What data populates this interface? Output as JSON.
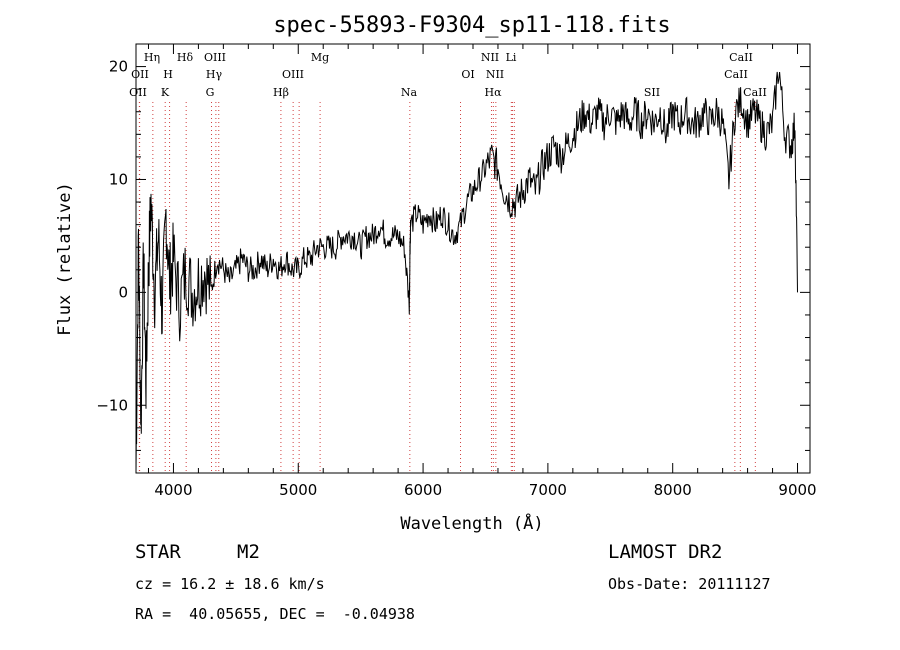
{
  "chart_data": {
    "type": "line",
    "title": "spec-55893-F9304_sp11-118.fits",
    "xlabel": "Wavelength (Å)",
    "ylabel": "Flux (relative)",
    "xlim": [
      3700,
      9100
    ],
    "ylim": [
      -16,
      22
    ],
    "xticks": [
      4000,
      5000,
      6000,
      7000,
      8000,
      9000
    ],
    "yticks": [
      -10,
      0,
      10,
      20
    ],
    "ytick_labels": [
      "−10",
      "0",
      "10",
      "20"
    ],
    "grid": false,
    "series": [
      {
        "x": [
          3700,
          3720,
          3740,
          3760,
          3780,
          3800,
          3820,
          3850,
          3880,
          3910,
          3940,
          3970,
          4000,
          4050,
          4100,
          4150,
          4200,
          4250,
          4300,
          4350,
          4400,
          4450,
          4500,
          4550,
          4600,
          4650,
          4700,
          4750,
          4800,
          4850,
          4900,
          4950,
          5000,
          5050,
          5100,
          5150,
          5200,
          5250,
          5300,
          5350,
          5400,
          5450,
          5500,
          5550,
          5600,
          5650,
          5700,
          5750,
          5800,
          5850,
          5890,
          5895,
          5900,
          5950,
          6000,
          6050,
          6100,
          6150,
          6200,
          6250,
          6300,
          6350,
          6400,
          6450,
          6500,
          6550,
          6600,
          6650,
          6700,
          6750,
          6800,
          6850,
          6900,
          6950,
          7000,
          7050,
          7100,
          7150,
          7200,
          7250,
          7300,
          7350,
          7400,
          7450,
          7500,
          7550,
          7600,
          7650,
          7700,
          7750,
          7800,
          7850,
          7900,
          7950,
          8000,
          8050,
          8100,
          8150,
          8200,
          8250,
          8300,
          8350,
          8400,
          8450,
          8500,
          8550,
          8600,
          8650,
          8700,
          8750,
          8800,
          8850,
          8900,
          8950,
          8980,
          9000
        ],
        "y": [
          -16,
          5,
          -12,
          3,
          -8,
          2,
          8,
          0,
          5,
          -2,
          7,
          1,
          3,
          -1,
          2,
          0,
          1,
          2,
          0,
          3,
          2,
          1,
          2,
          3,
          2,
          2,
          3,
          2,
          3,
          2,
          3,
          2,
          2,
          3,
          3,
          4,
          4,
          4,
          4,
          5,
          5,
          5,
          4,
          5,
          5,
          6,
          5,
          5,
          5,
          4,
          -1,
          4,
          6,
          7,
          6,
          7,
          6,
          7,
          6,
          5,
          6,
          8,
          9,
          10,
          11,
          12,
          11,
          9,
          8,
          8,
          9,
          10,
          9,
          11,
          12,
          13,
          12,
          13,
          14,
          15,
          16,
          15,
          16,
          15,
          16,
          15,
          16,
          15,
          16,
          15,
          16,
          15,
          16,
          14,
          16,
          15,
          16,
          15,
          15,
          16,
          15,
          16,
          15,
          10,
          16,
          17,
          15,
          16,
          15,
          14,
          15,
          20,
          14,
          13,
          15,
          0
        ]
      }
    ],
    "lines": [
      {
        "name": "OII",
        "x": 3727
      },
      {
        "name": "OII",
        "x": 3729
      },
      {
        "name": "Hη",
        "x": 3835
      },
      {
        "name": "H",
        "x": 3969
      },
      {
        "name": "K",
        "x": 3934
      },
      {
        "name": "Hδ",
        "x": 4102
      },
      {
        "name": "OIII",
        "x": 4363
      },
      {
        "name": "Hγ",
        "x": 4340
      },
      {
        "name": "G",
        "x": 4305
      },
      {
        "name": "Hβ",
        "x": 4861
      },
      {
        "name": "OIII",
        "x": 4959
      },
      {
        "name": "OIII",
        "x": 5007
      },
      {
        "name": "Mg",
        "x": 5175
      },
      {
        "name": "Na",
        "x": 5894
      },
      {
        "name": "OI",
        "x": 6300
      },
      {
        "name": "NII",
        "x": 6548
      },
      {
        "name": "NII",
        "x": 6583
      },
      {
        "name": "Hα",
        "x": 6563
      },
      {
        "name": "Li",
        "x": 6707
      },
      {
        "name": "SII",
        "x": 6716
      },
      {
        "name": "SII",
        "x": 6731
      },
      {
        "name": "CaII",
        "x": 8498
      },
      {
        "name": "CaII",
        "x": 8542
      },
      {
        "name": "CaII",
        "x": 8662
      }
    ]
  },
  "labels": {
    "hr": "Hη",
    "h": "H",
    "k": "K",
    "hd": "Hδ",
    "oiii1": "OIII",
    "hg": "Hγ",
    "g": "G",
    "mg": "Mg",
    "oiii2": "OIII",
    "hb": "Hβ",
    "na": "Na",
    "oi": "OI",
    "nii1": "NII",
    "li": "Li",
    "nii2": "NII",
    "ha": "Hα",
    "sii": "SII",
    "caii1": "CaII",
    "caii2": "CaII",
    "caii3": "CaII",
    "oii1": "OII",
    "oii2": "OII"
  },
  "info": {
    "class": "STAR",
    "subclass": "M2",
    "survey": "LAMOST DR2",
    "cz": "cz = 16.2 ± 18.6 km/s",
    "obsdate": "Obs-Date: 20111127",
    "radec": "RA =  40.05655, DEC =  -0.04938"
  }
}
